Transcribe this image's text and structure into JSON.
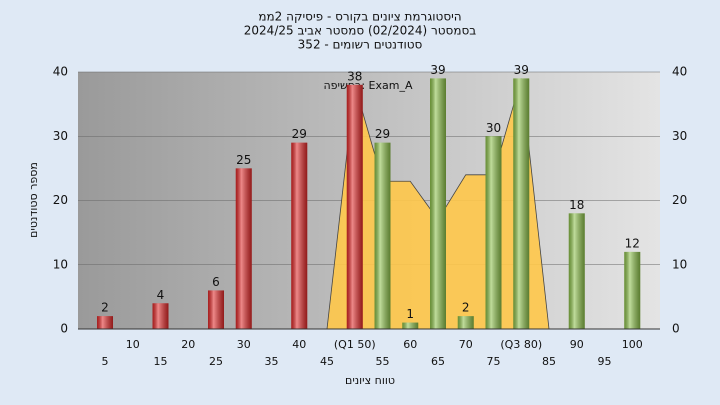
{
  "chart_data": {
    "type": "bar",
    "title": [
      "היסטוגרמת ציונים בקורס - פיסיקה 2ממ",
      "בסמסטר  (02/2024)  סמסטר אביב 2024/25",
      "סטודנטים רשומים - 352"
    ],
    "annotation": "בחשיפה: Exam_A",
    "x_label": "טווח ציונים",
    "y_label": "מספר סטודנטים",
    "categories": [
      "5",
      "10",
      "15",
      "20",
      "25",
      "30",
      "35",
      "40",
      "45",
      "(Q1 50)",
      "55",
      "60",
      "65",
      "70",
      "75",
      "(Q3 80)",
      "85",
      "90",
      "95",
      "100"
    ],
    "series": [
      {
        "color": "#e02828",
        "values": [
          2,
          null,
          4,
          null,
          6,
          25,
          null,
          29,
          null,
          38,
          null,
          null,
          null,
          null,
          null,
          null,
          null,
          null,
          null,
          null
        ]
      },
      {
        "color": "#8cc04a",
        "values": [
          null,
          null,
          null,
          null,
          null,
          null,
          null,
          null,
          null,
          null,
          29,
          1,
          39,
          2,
          30,
          39,
          null,
          18,
          null,
          12
        ]
      }
    ],
    "area": {
      "color": "#ffc84a",
      "values": [
        null,
        null,
        null,
        null,
        null,
        null,
        null,
        null,
        0,
        38,
        23,
        23,
        17,
        24,
        24,
        39,
        0,
        null,
        null,
        null
      ]
    },
    "ylim": [
      0,
      40
    ],
    "yticks": [
      0,
      10,
      20,
      30,
      40
    ],
    "grid": true
  }
}
